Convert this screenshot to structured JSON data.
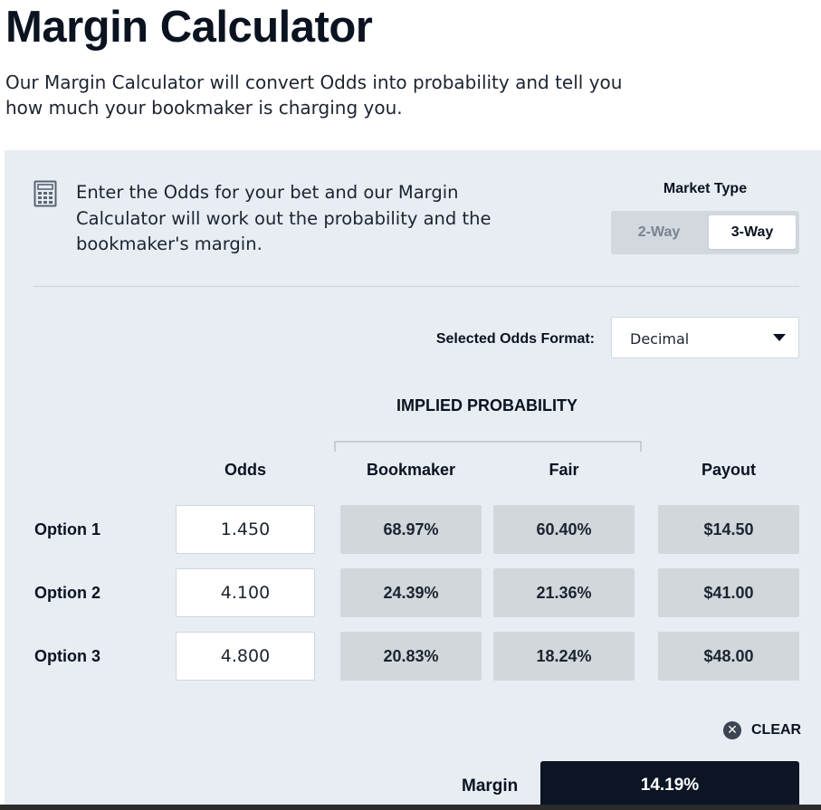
{
  "page": {
    "title": "Margin Calculator",
    "intro": "Our Margin Calculator will convert Odds into probability and tell you how much your bookmaker is charging you."
  },
  "panel": {
    "description": "Enter the Odds for your bet and our Margin Calculator will work out the probability and the bookmaker's margin.",
    "icon": "calculator-icon",
    "market_type": {
      "label": "Market Type",
      "options": [
        "2-Way",
        "3-Way"
      ],
      "selected": "3-Way"
    },
    "odds_format": {
      "label": "Selected Odds Format:",
      "value": "Decimal"
    },
    "table": {
      "group_heading": "IMPLIED PROBABILITY",
      "headers": {
        "odds": "Odds",
        "bookmaker": "Bookmaker",
        "fair": "Fair",
        "payout": "Payout"
      },
      "rows": [
        {
          "label": "Option 1",
          "odds": "1.450",
          "bookmaker": "68.97%",
          "fair": "60.40%",
          "payout": "$14.50"
        },
        {
          "label": "Option 2",
          "odds": "4.100",
          "bookmaker": "24.39%",
          "fair": "21.36%",
          "payout": "$41.00"
        },
        {
          "label": "Option 3",
          "odds": "4.800",
          "bookmaker": "20.83%",
          "fair": "18.24%",
          "payout": "$48.00"
        }
      ]
    },
    "clear_label": "CLEAR",
    "margin": {
      "label": "Margin",
      "value": "14.19%"
    }
  },
  "colors": {
    "panel_bg": "#e8edf3",
    "cell_bg": "#d2d7dc",
    "margin_bg": "#0b1524",
    "text": "#0b1220"
  }
}
